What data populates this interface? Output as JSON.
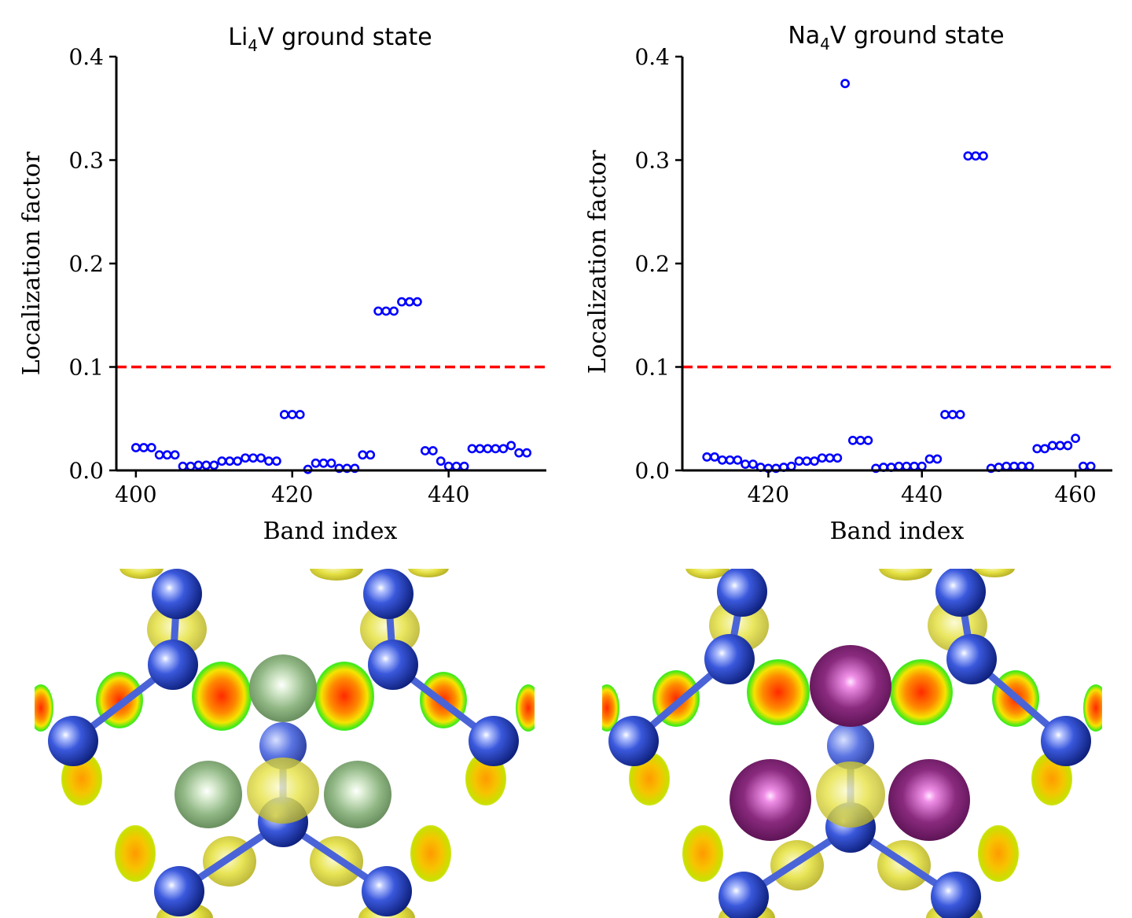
{
  "figure": {
    "bg": "#ffffff",
    "marker_color": "#0000ff",
    "threshold_color": "#ff0000"
  },
  "chart_data": [
    {
      "type": "scatter",
      "title": "Li₄V ground state",
      "title_main": "Li",
      "title_sub": "4",
      "title_rest": "V ground state",
      "xlabel": "Band index",
      "ylabel": "Localization factor",
      "xlim": [
        397.5,
        452.5
      ],
      "ylim": [
        0,
        0.4
      ],
      "xticks": [
        400,
        420,
        440
      ],
      "yticks": [
        0.0,
        0.1,
        0.2,
        0.3,
        0.4
      ],
      "ytick_labels": [
        "0.0",
        "0.1",
        "0.2",
        "0.3",
        "0.4"
      ],
      "threshold": 0.1,
      "series": [
        {
          "x": [
            400,
            401,
            402,
            403,
            404,
            405,
            406,
            407,
            408,
            409,
            410,
            411,
            412,
            413,
            414,
            415,
            416,
            417,
            418,
            419,
            420,
            421,
            422,
            423,
            424,
            425,
            426,
            427,
            428,
            429,
            430,
            431,
            432,
            433,
            434,
            435,
            436,
            437,
            438,
            439,
            440,
            441,
            442,
            443,
            444,
            445,
            446,
            447,
            448,
            449,
            450
          ],
          "y": [
            0.022,
            0.022,
            0.022,
            0.015,
            0.015,
            0.015,
            0.004,
            0.004,
            0.005,
            0.005,
            0.005,
            0.009,
            0.009,
            0.009,
            0.012,
            0.012,
            0.012,
            0.009,
            0.009,
            0.054,
            0.054,
            0.054,
            0.001,
            0.007,
            0.007,
            0.007,
            0.002,
            0.002,
            0.002,
            0.015,
            0.015,
            0.154,
            0.154,
            0.154,
            0.163,
            0.163,
            0.163,
            0.019,
            0.019,
            0.009,
            0.004,
            0.004,
            0.004,
            0.021,
            0.021,
            0.021,
            0.021,
            0.021,
            0.024,
            0.017,
            0.017
          ]
        }
      ]
    },
    {
      "type": "scatter",
      "title": "Na₄V ground state",
      "title_main": "Na",
      "title_sub": "4",
      "title_rest": "V ground state",
      "xlabel": "Band index",
      "ylabel": "Localization factor",
      "xlim": [
        408.8,
        464.8
      ],
      "ylim": [
        0,
        0.4
      ],
      "xticks": [
        420,
        440,
        460
      ],
      "yticks": [
        0.0,
        0.1,
        0.2,
        0.3,
        0.4
      ],
      "ytick_labels": [
        "0.0",
        "0.1",
        "0.2",
        "0.3",
        "0.4"
      ],
      "threshold": 0.1,
      "series": [
        {
          "x": [
            412,
            413,
            414,
            415,
            416,
            417,
            418,
            419,
            420,
            421,
            422,
            423,
            424,
            425,
            426,
            427,
            428,
            429,
            430,
            431,
            432,
            433,
            434,
            435,
            436,
            437,
            438,
            439,
            440,
            441,
            442,
            443,
            444,
            445,
            446,
            447,
            448,
            449,
            450,
            451,
            452,
            453,
            454,
            455,
            456,
            457,
            458,
            459,
            460,
            461,
            462
          ],
          "y": [
            0.013,
            0.013,
            0.01,
            0.01,
            0.01,
            0.006,
            0.006,
            0.003,
            0.002,
            0.002,
            0.003,
            0.004,
            0.009,
            0.009,
            0.009,
            0.012,
            0.012,
            0.012,
            0.374,
            0.029,
            0.029,
            0.029,
            0.002,
            0.003,
            0.003,
            0.004,
            0.004,
            0.004,
            0.004,
            0.011,
            0.011,
            0.054,
            0.054,
            0.054,
            0.304,
            0.304,
            0.304,
            0.002,
            0.003,
            0.004,
            0.004,
            0.004,
            0.004,
            0.021,
            0.021,
            0.024,
            0.024,
            0.024,
            0.031,
            0.004,
            0.004
          ]
        }
      ]
    }
  ],
  "structures": [
    {
      "name": "li4v-structure",
      "host_atom_color": "#3350d0",
      "guest_atom_color": "#86ad78",
      "isosurface_color": "#e9e23c"
    },
    {
      "name": "na4v-structure",
      "host_atom_color": "#3350d0",
      "guest_atom_color": "#7a1a6e",
      "isosurface_color": "#e9e23c"
    }
  ]
}
